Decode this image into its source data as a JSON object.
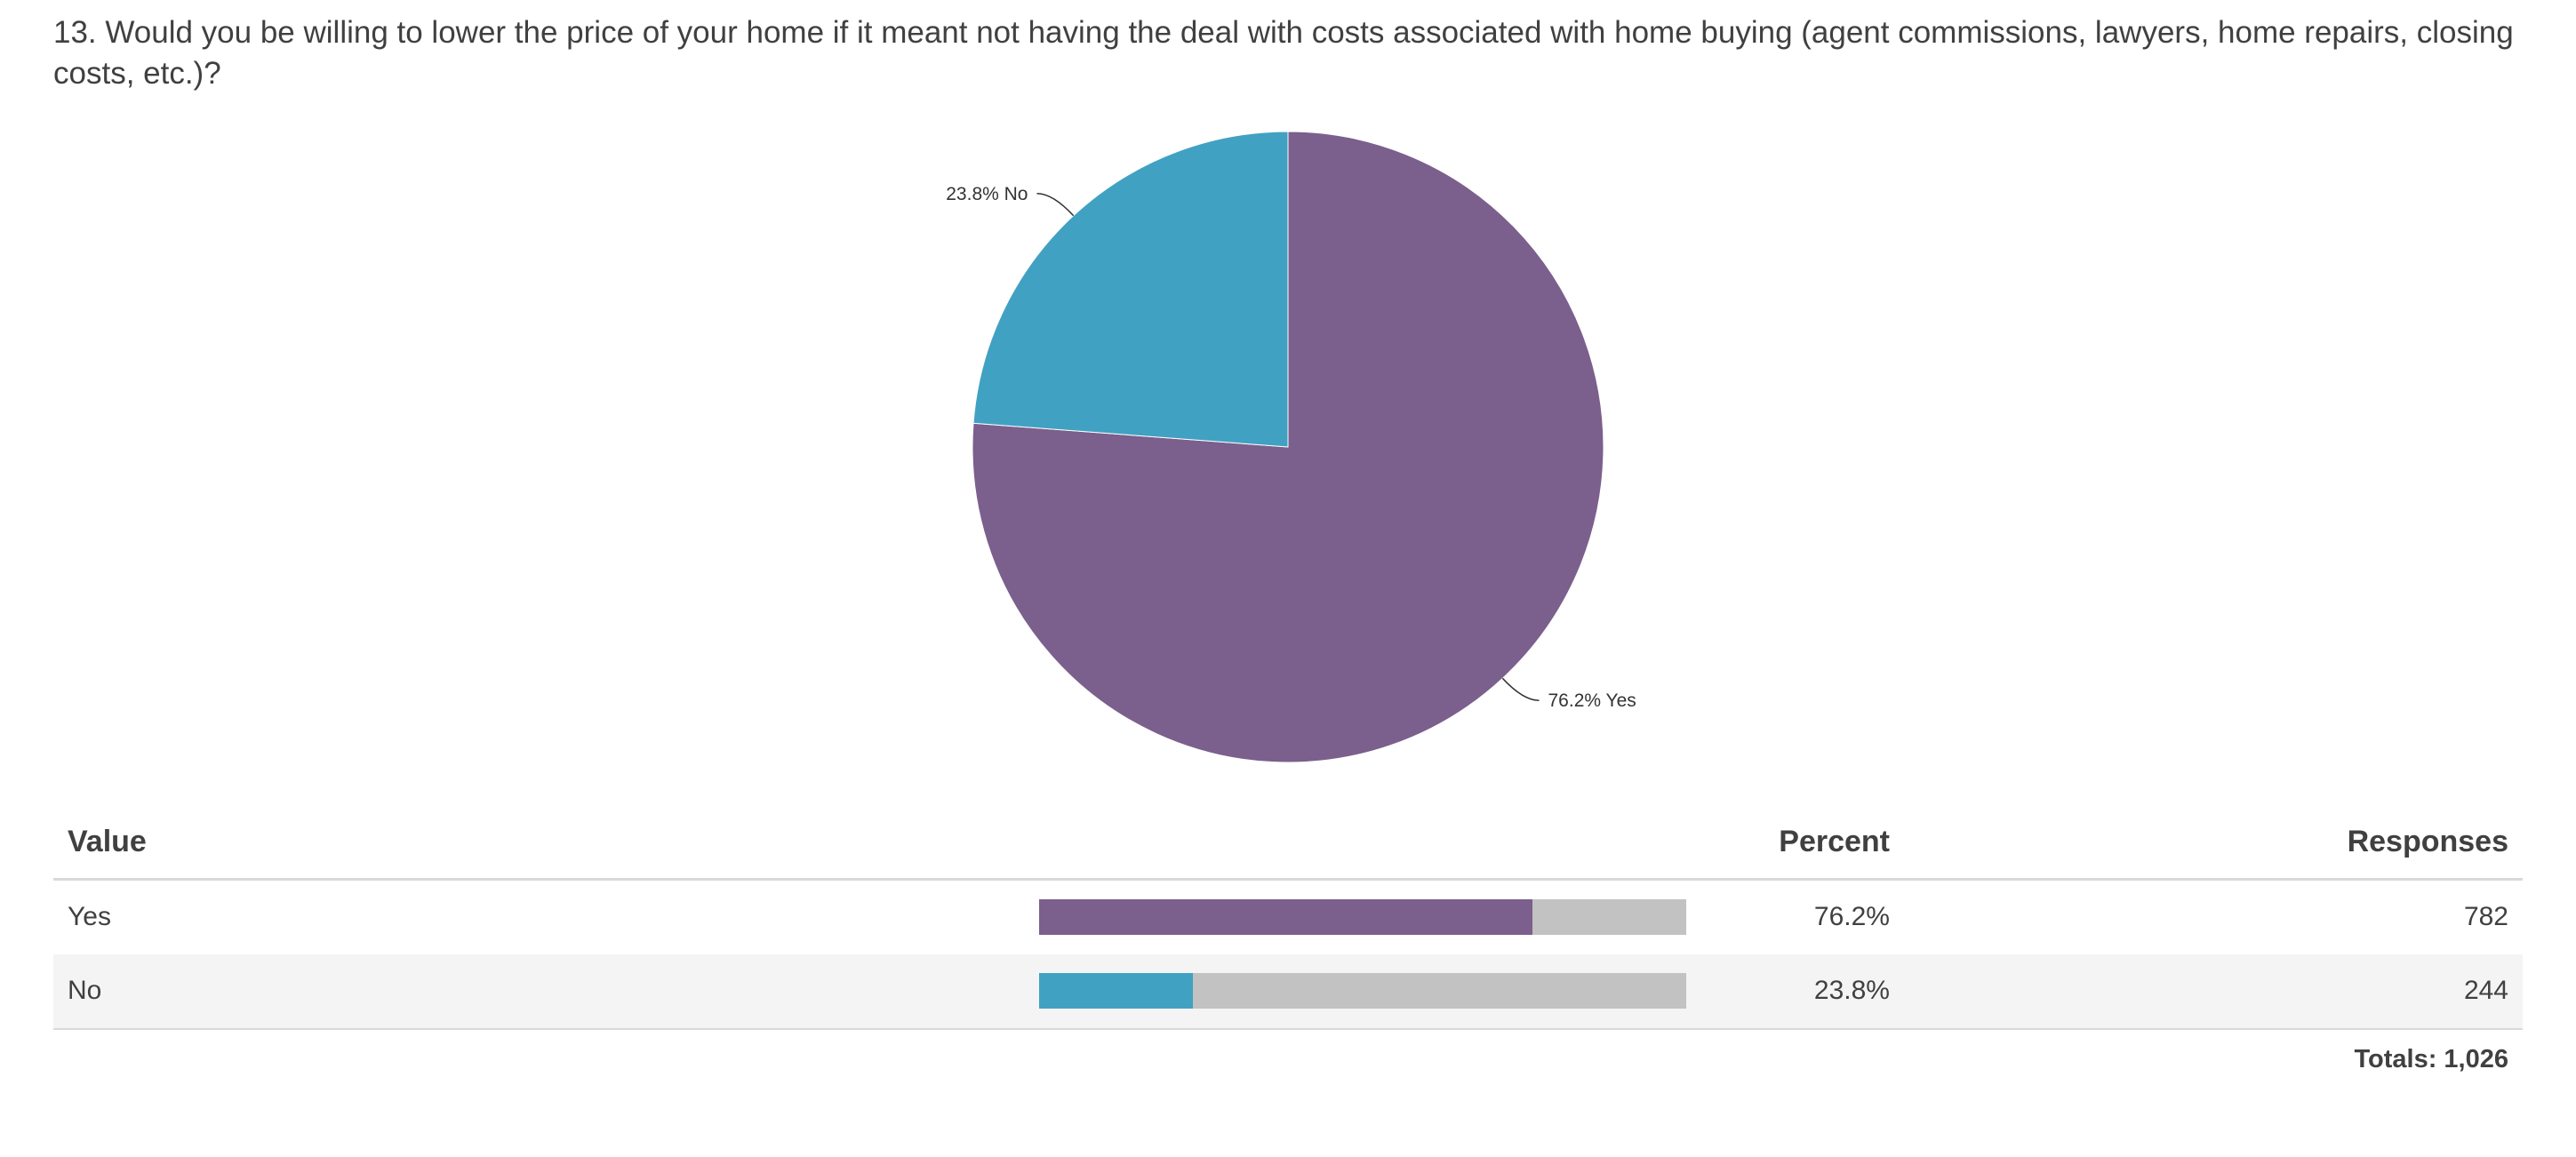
{
  "question": "13. Would you be willing to lower the price of your home if it meant not having the deal with costs associated with home buying (agent commissions, lawyers, home repairs, closing costs, etc.)?",
  "chart_data": {
    "type": "pie",
    "title": "13. Would you be willing to lower the price of your home if it meant not having the deal with costs associated with home buying (agent commissions, lawyers, home repairs, closing costs, etc.)?",
    "slices": [
      {
        "label": "Yes",
        "percent": 76.2,
        "responses": 782,
        "color": "#7b5f8c",
        "data_label": "76.2% Yes"
      },
      {
        "label": "No",
        "percent": 23.8,
        "responses": 244,
        "color": "#41a1c2",
        "data_label": "23.8% No"
      }
    ]
  },
  "table": {
    "headers": {
      "value": "Value",
      "percent": "Percent",
      "responses": "Responses"
    },
    "rows": [
      {
        "value": "Yes",
        "percent_text": "76.2%",
        "responses": "782",
        "fill_fraction": 0.762,
        "color": "#7b5f8c"
      },
      {
        "value": "No",
        "percent_text": "23.8%",
        "responses": "244",
        "fill_fraction": 0.238,
        "color": "#41a1c2"
      }
    ],
    "totals": "Totals: 1,026"
  }
}
